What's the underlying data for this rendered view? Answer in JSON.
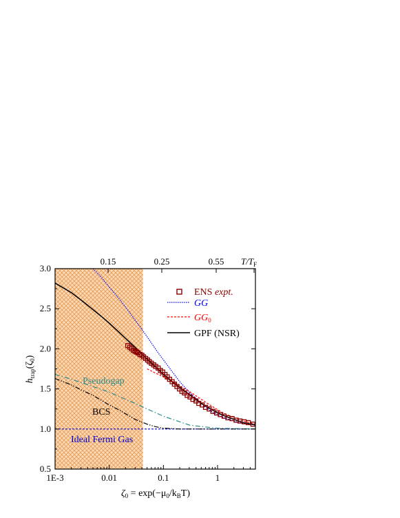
{
  "chart_data": {
    "type": "line",
    "xaxis": {
      "scale": "log",
      "xlim": [
        0.001,
        5
      ],
      "ticks": [
        "1E-3",
        "0.01",
        "0.1",
        "1"
      ]
    },
    "yaxis": {
      "ylim": [
        0.5,
        3.0
      ],
      "ticks": [
        "0.5",
        "1.0",
        "1.5",
        "2.0",
        "2.5",
        "3.0"
      ]
    },
    "top_axis": {
      "ticks": [
        "0.15",
        "0.25",
        "0.55"
      ],
      "label_main": "T/T",
      "label_sub": "F"
    },
    "xlabel": {
      "main": "ζ",
      "sub": "0",
      "rest": " = exp(−μ",
      "sub2": "0",
      "rest2": "/k",
      "sub3": "B",
      "rest3": "T)"
    },
    "ylabel": {
      "main": "h",
      "sub": "trap",
      "rest": "(ζ",
      "sub2": "0",
      "rest2": ")"
    },
    "shaded_region": {
      "x_from": 0.001,
      "x_to": 0.042,
      "color": "#f0a860"
    },
    "legend": {
      "placement": "top-right",
      "entries": [
        {
          "label": "ENS ",
          "label_italic": "expt.",
          "color": "#8b0000",
          "style": "square-marker"
        },
        {
          "label": "GG",
          "color": "#0000ff",
          "style": "dotted"
        },
        {
          "label": "GG",
          "sub": "0",
          "color": "#ff0000",
          "style": "dashed"
        },
        {
          "label": "GPF (NSR)",
          "color": "#000000",
          "style": "solid"
        }
      ]
    },
    "annotations": [
      {
        "text": "Pseudogap",
        "color": "#2a8a8a"
      },
      {
        "text": "BCS",
        "color": "#000000"
      },
      {
        "text": "Ideal Fermi Gas",
        "color": "#0000cc"
      }
    ],
    "series": [
      {
        "name": "ENS expt.",
        "kind": "markers",
        "color": "#8b0000",
        "x": [
          0.022,
          0.024,
          0.026,
          0.028,
          0.03,
          0.032,
          0.034,
          0.037,
          0.04,
          0.043,
          0.047,
          0.051,
          0.055,
          0.06,
          0.066,
          0.072,
          0.08,
          0.088,
          0.097,
          0.107,
          0.118,
          0.13,
          0.145,
          0.16,
          0.178,
          0.198,
          0.22,
          0.245,
          0.275,
          0.31,
          0.35,
          0.4,
          0.45,
          0.52,
          0.6,
          0.7,
          0.82,
          0.96,
          1.12,
          1.32,
          1.55,
          1.85,
          2.2,
          2.6,
          3.1,
          3.7,
          4.5
        ],
        "y": [
          2.04,
          2.02,
          2.0,
          1.98,
          1.97,
          1.96,
          1.95,
          1.93,
          1.92,
          1.9,
          1.88,
          1.86,
          1.84,
          1.82,
          1.8,
          1.78,
          1.76,
          1.73,
          1.71,
          1.68,
          1.65,
          1.62,
          1.59,
          1.56,
          1.53,
          1.5,
          1.47,
          1.45,
          1.42,
          1.4,
          1.37,
          1.35,
          1.32,
          1.3,
          1.27,
          1.25,
          1.22,
          1.2,
          1.18,
          1.16,
          1.14,
          1.13,
          1.11,
          1.1,
          1.09,
          1.08,
          1.06
        ]
      },
      {
        "name": "GG",
        "kind": "line",
        "style": "dotted",
        "color": "#0000ff",
        "x": [
          0.005,
          0.007,
          0.01,
          0.015,
          0.02,
          0.03,
          0.05,
          0.08,
          0.12,
          0.2,
          0.3,
          0.5,
          0.8,
          1.2,
          2,
          3,
          5
        ],
        "y": [
          3.0,
          2.9,
          2.77,
          2.63,
          2.52,
          2.36,
          2.15,
          1.95,
          1.79,
          1.59,
          1.46,
          1.32,
          1.21,
          1.15,
          1.1,
          1.07,
          1.05
        ]
      },
      {
        "name": "GG0",
        "kind": "line",
        "style": "dashed",
        "color": "#ff0000",
        "x": [
          0.05,
          0.07,
          0.1,
          0.15,
          0.2,
          0.3,
          0.5,
          0.8,
          1.2,
          2,
          3,
          5
        ],
        "y": [
          1.75,
          1.7,
          1.65,
          1.59,
          1.54,
          1.47,
          1.37,
          1.28,
          1.21,
          1.14,
          1.1,
          1.06
        ]
      },
      {
        "name": "GPF (NSR)",
        "kind": "line",
        "style": "solid",
        "color": "#000000",
        "x": [
          0.001,
          0.0015,
          0.002,
          0.003,
          0.005,
          0.007,
          0.01,
          0.015,
          0.02,
          0.03,
          0.05,
          0.07,
          0.1,
          0.15,
          0.2,
          0.3,
          0.5,
          0.7,
          1,
          1.5,
          2,
          3,
          5
        ],
        "y": [
          2.82,
          2.75,
          2.7,
          2.61,
          2.49,
          2.41,
          2.32,
          2.21,
          2.13,
          2.02,
          1.87,
          1.78,
          1.68,
          1.58,
          1.52,
          1.43,
          1.32,
          1.26,
          1.2,
          1.15,
          1.12,
          1.08,
          1.05
        ]
      },
      {
        "name": "Pseudogap",
        "kind": "line",
        "style": "dashdot",
        "color": "#2a8a8a",
        "x": [
          0.001,
          0.002,
          0.003,
          0.005,
          0.01,
          0.02,
          0.03,
          0.05,
          0.1,
          0.2,
          0.3,
          0.5,
          1,
          2,
          5
        ],
        "y": [
          1.68,
          1.62,
          1.58,
          1.53,
          1.46,
          1.37,
          1.32,
          1.25,
          1.16,
          1.09,
          1.05,
          1.03,
          1.01,
          1.005,
          1.0
        ]
      },
      {
        "name": "BCS",
        "kind": "line",
        "style": "dashdotdot",
        "color": "#000000",
        "x": [
          0.001,
          0.002,
          0.003,
          0.005,
          0.01,
          0.015,
          0.02,
          0.03,
          0.05,
          0.07,
          0.1,
          0.15,
          0.2,
          0.3,
          0.5,
          1,
          5
        ],
        "y": [
          1.63,
          1.55,
          1.49,
          1.42,
          1.3,
          1.24,
          1.19,
          1.12,
          1.06,
          1.03,
          1.01,
          1.005,
          1.0,
          1.0,
          1.0,
          1.0,
          1.0
        ]
      },
      {
        "name": "Ideal Fermi Gas",
        "kind": "line",
        "style": "dashed",
        "color": "#0000cc",
        "x": [
          0.001,
          5
        ],
        "y": [
          1.0,
          1.0
        ]
      }
    ]
  }
}
